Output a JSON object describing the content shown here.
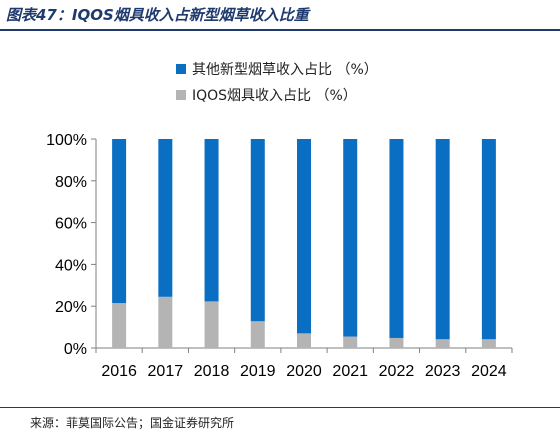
{
  "figure_title": "图表47：IQOS烟具收入占新型烟草收入比重",
  "source": "来源：菲莫国际公告；国金证券研究所",
  "chart_data": {
    "type": "bar",
    "stacked": true,
    "categories": [
      "2016",
      "2017",
      "2018",
      "2019",
      "2020",
      "2021",
      "2022",
      "2023",
      "2024"
    ],
    "series": [
      {
        "name": "其他新型烟草收入占比 （%）",
        "color": "#0a6fc2",
        "values": [
          78.5,
          75.5,
          77.7,
          87.2,
          93,
          94.5,
          95.2,
          95.8,
          95.8
        ]
      },
      {
        "name": "IQOS烟具收入占比 （%）",
        "color": "#b4b4b4",
        "values": [
          21.5,
          24.5,
          22.3,
          12.8,
          7,
          5.5,
          4.8,
          4.2,
          4.2
        ]
      }
    ],
    "ylim": [
      0,
      100
    ],
    "yticks": [
      "0%",
      "20%",
      "40%",
      "60%",
      "80%",
      "100%"
    ],
    "legend_position": "top",
    "grid": false
  }
}
